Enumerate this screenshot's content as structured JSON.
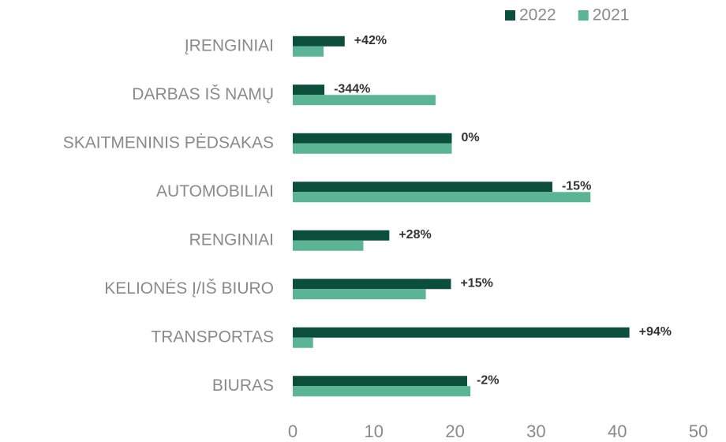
{
  "chart_data": {
    "type": "hbar",
    "categories": [
      "ĮRENGINIAI",
      "DARBAS IŠ NAMŲ",
      "SKAITMENINIS PĖDSAKAS",
      "AUTOMOBILIAI",
      "RENGINIAI",
      "KELIONĖS Į/IŠ BIURO",
      "TRANSPORTAS",
      "BIURAS"
    ],
    "series": [
      {
        "name": "2022",
        "color": "#0b4f3b",
        "values": [
          6.4,
          3.9,
          19.6,
          32.0,
          11.9,
          19.5,
          41.5,
          21.5
        ]
      },
      {
        "name": "2021",
        "color": "#5bb595",
        "values": [
          3.8,
          17.6,
          19.6,
          36.7,
          8.7,
          16.4,
          2.5,
          21.9
        ]
      }
    ],
    "annotations": [
      "+42%",
      "-344%",
      "0%",
      "-15%",
      "+28%",
      "+15%",
      "+94%",
      "-2%"
    ],
    "xlim": [
      0,
      50
    ],
    "xticks": [
      0,
      10,
      20,
      30,
      40,
      50
    ],
    "grid": false,
    "legend": "top-right"
  }
}
